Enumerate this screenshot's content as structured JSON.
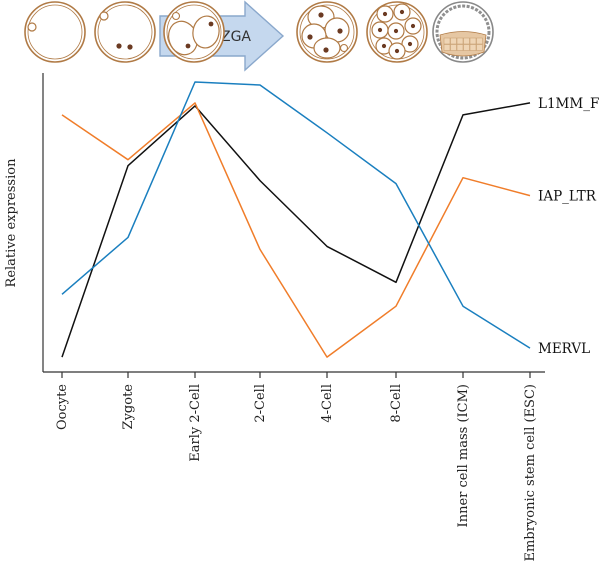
{
  "header": {
    "arrow_label": "ZGA",
    "stages": [
      "Oocyte",
      "Zygote",
      "2-cell",
      "2-cell",
      "4-cell",
      "8-cell",
      "Blastocyst"
    ]
  },
  "colors": {
    "L1MM_F": "#111111",
    "IAP_LTR": "#f07d2a",
    "MERVL": "#1a7fbf",
    "cell_outline": "#b07a45",
    "nucleus": "#6b3a22",
    "arrow_fill": "#c5d8ee",
    "arrow_stroke": "#8aa8cc"
  },
  "chart_data": {
    "type": "line",
    "title": "",
    "xlabel": "",
    "ylabel": "Relative expression",
    "ylim": [
      0,
      1
    ],
    "grid": false,
    "legend": "inline labels at right end of each line",
    "categories": [
      "Oocyte",
      "Zygote",
      "Early 2-Cell",
      "2-Cell",
      "4-Cell",
      "8-Cell",
      "Inner cell mass (ICM)",
      "Embryonic stem cell (ESC)"
    ],
    "series": [
      {
        "name": "L1MM_F",
        "color": "#111111",
        "values": [
          0.05,
          0.69,
          0.89,
          0.64,
          0.42,
          0.3,
          0.86,
          0.9
        ]
      },
      {
        "name": "IAP_LTR",
        "color": "#f07d2a",
        "values": [
          0.86,
          0.71,
          0.9,
          0.41,
          0.05,
          0.22,
          0.65,
          0.59
        ]
      },
      {
        "name": "MERVL",
        "color": "#1a7fbf",
        "values": [
          0.26,
          0.45,
          0.97,
          0.96,
          0.8,
          0.63,
          0.22,
          0.08
        ]
      }
    ]
  }
}
